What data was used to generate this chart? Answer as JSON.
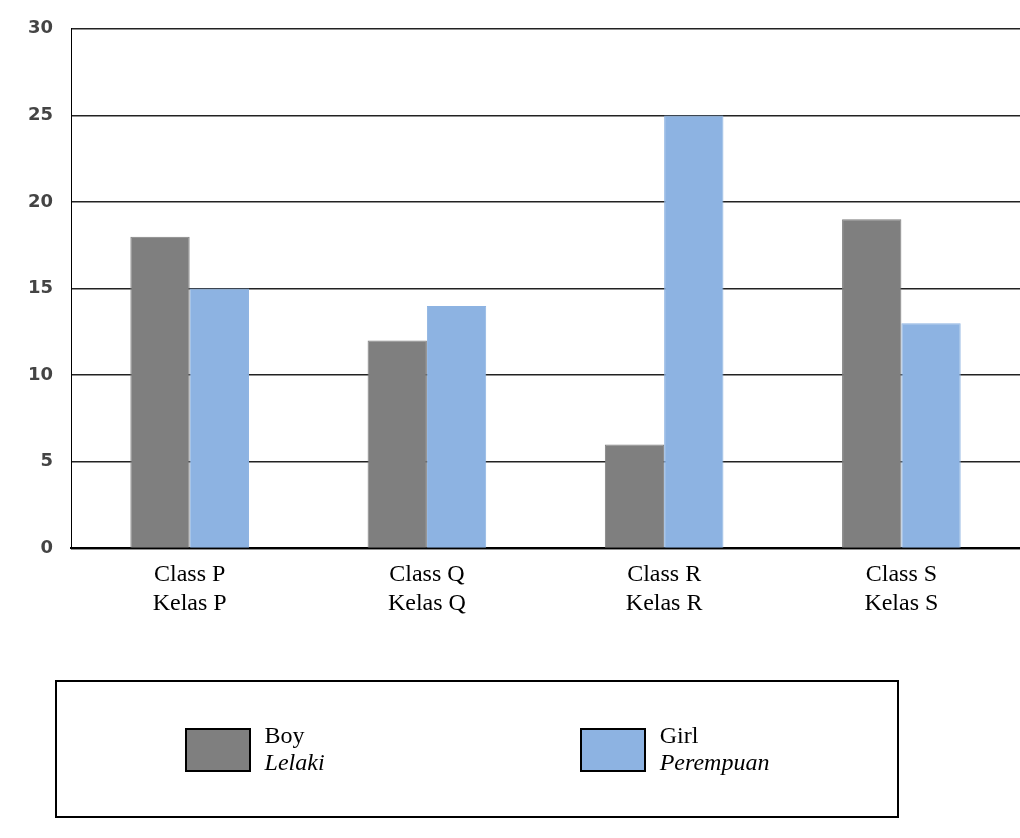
{
  "chart_data": {
    "type": "bar",
    "categories": [
      "Class P\nKelas P",
      "Class Q\nKelas Q",
      "Class R\nKelas R",
      "Class S\nKelas S"
    ],
    "series": [
      {
        "name": "Boy\nLelaki",
        "color": "#7f7f7f",
        "values": [
          18,
          12,
          6,
          19
        ]
      },
      {
        "name": "Girl\nPerempuan",
        "color": "#8db3e2",
        "values": [
          15,
          14,
          25,
          13
        ]
      }
    ],
    "ylim": [
      0,
      30
    ],
    "yticks": [
      0,
      5,
      10,
      15,
      20,
      25,
      30
    ],
    "grid": "y",
    "legend": "bottom"
  }
}
